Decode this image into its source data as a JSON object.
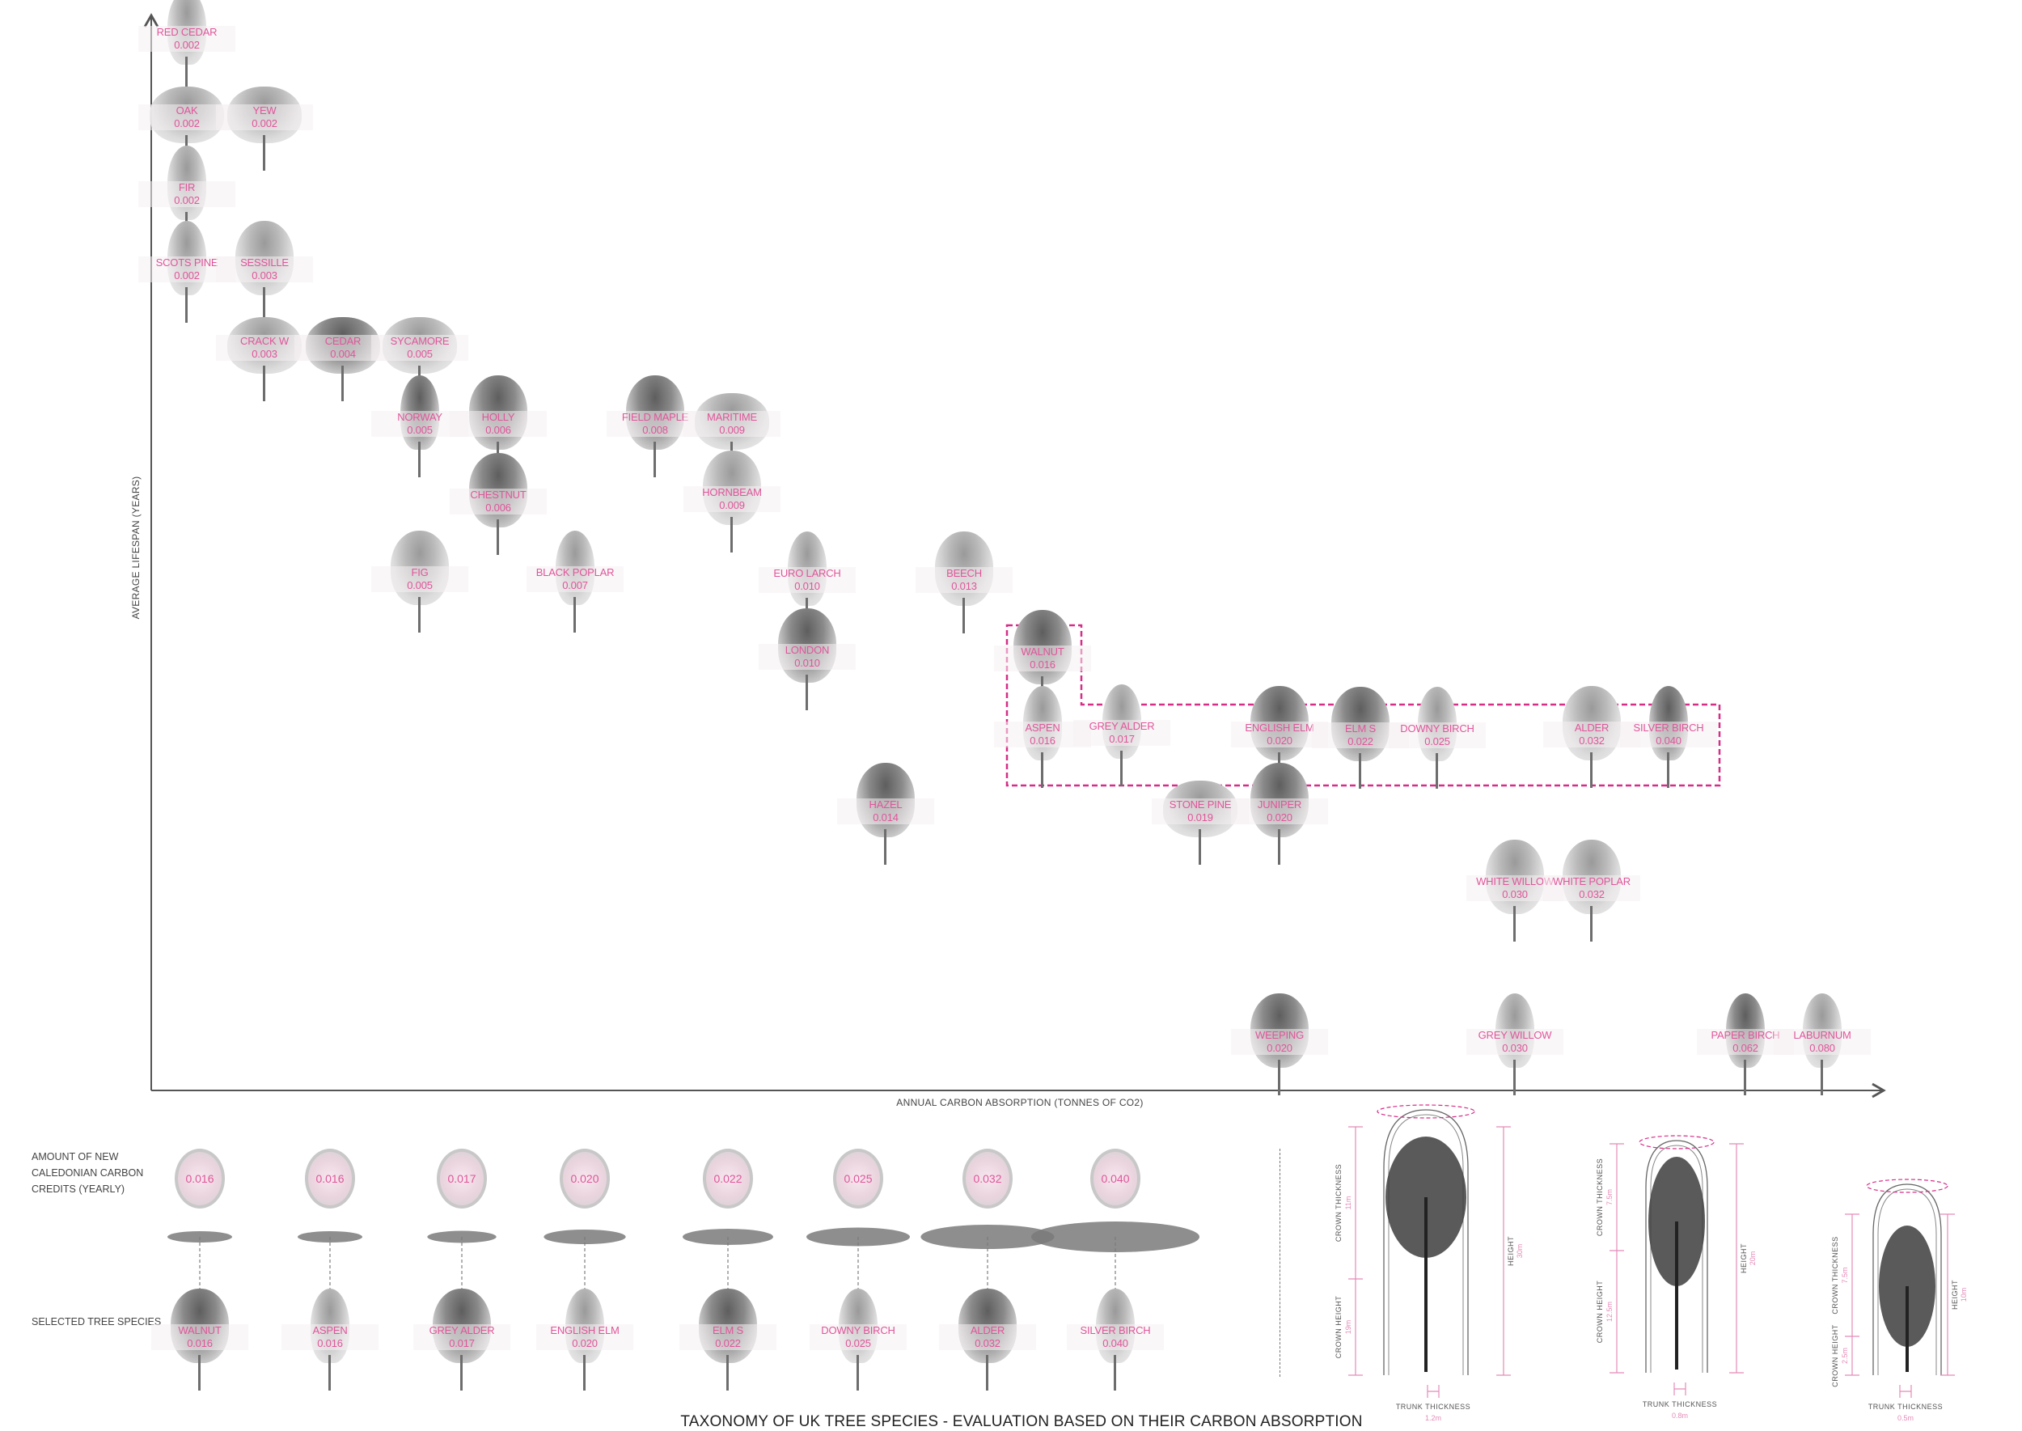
{
  "title": "TAXONOMY OF UK TREE SPECIES - EVALUATION BASED ON THEIR CARBON ABSORPTION",
  "colors": {
    "accent": "#e0559a",
    "highlight_box": "#d62d87",
    "tree_grey": "#8a8a8a",
    "ellipse_grey": "#7a7a7a"
  },
  "chart": {
    "x_axis_label": "ANNUAL CARBON ABSORPTION (TONNES OF CO2)",
    "y_axis_label": "AVERAGE LIFESPAN (YEARS)",
    "trees": [
      {
        "name": "RED CEDAR",
        "value": "0.002"
      },
      {
        "name": "OAK",
        "value": "0.002"
      },
      {
        "name": "YEW",
        "value": "0.002"
      },
      {
        "name": "FIR",
        "value": "0.002"
      },
      {
        "name": "SCOTS PINE",
        "value": "0.002"
      },
      {
        "name": "SESSILLE",
        "value": "0.003"
      },
      {
        "name": "CRACK W",
        "value": "0.003"
      },
      {
        "name": "CEDAR",
        "value": "0.004"
      },
      {
        "name": "SYCAMORE",
        "value": "0.005"
      },
      {
        "name": "NORWAY",
        "value": "0.005"
      },
      {
        "name": "HOLLY",
        "value": "0.006"
      },
      {
        "name": "FIELD MAPLE",
        "value": "0.008"
      },
      {
        "name": "MARITIME",
        "value": "0.009"
      },
      {
        "name": "CHESTNUT",
        "value": "0.006"
      },
      {
        "name": "HORNBEAM",
        "value": "0.009"
      },
      {
        "name": "FIG",
        "value": "0.005"
      },
      {
        "name": "BLACK POPLAR",
        "value": "0.007"
      },
      {
        "name": "EURO LARCH",
        "value": "0.010"
      },
      {
        "name": "BEECH",
        "value": "0.013"
      },
      {
        "name": "LONDON",
        "value": "0.010"
      },
      {
        "name": "WALNUT",
        "value": "0.016"
      },
      {
        "name": "ASPEN",
        "value": "0.016"
      },
      {
        "name": "GREY ALDER",
        "value": "0.017"
      },
      {
        "name": "ENGLISH ELM",
        "value": "0.020"
      },
      {
        "name": "ELM S",
        "value": "0.022"
      },
      {
        "name": "DOWNY BIRCH",
        "value": "0.025"
      },
      {
        "name": "ALDER",
        "value": "0.032"
      },
      {
        "name": "SILVER BIRCH",
        "value": "0.040"
      },
      {
        "name": "HAZEL",
        "value": "0.014"
      },
      {
        "name": "STONE PINE",
        "value": "0.019"
      },
      {
        "name": "JUNIPER",
        "value": "0.020"
      },
      {
        "name": "WHITE WILLOW",
        "value": "0.030"
      },
      {
        "name": "WHITE POPLAR",
        "value": "0.032"
      },
      {
        "name": "WEEPING",
        "value": "0.020"
      },
      {
        "name": "GREY WILLOW",
        "value": "0.030"
      },
      {
        "name": "PAPER BIRCH",
        "value": "0.062"
      },
      {
        "name": "LABURNUM",
        "value": "0.080"
      }
    ]
  },
  "selection": {
    "credits_label": [
      "AMOUNT OF NEW",
      "CALEDONIAN CARBON",
      "CREDITS (YEARLY)"
    ],
    "species_label": "SELECTED TREE SPECIES",
    "items": [
      {
        "name": "WALNUT",
        "value": "0.016",
        "credit": "0.016"
      },
      {
        "name": "ASPEN",
        "value": "0.016",
        "credit": "0.016"
      },
      {
        "name": "GREY ALDER",
        "value": "0.017",
        "credit": "0.017"
      },
      {
        "name": "ENGLISH ELM",
        "value": "0.020",
        "credit": "0.020"
      },
      {
        "name": "ELM S",
        "value": "0.022",
        "credit": "0.022"
      },
      {
        "name": "DOWNY BIRCH",
        "value": "0.025",
        "credit": "0.025"
      },
      {
        "name": "ALDER",
        "value": "0.032",
        "credit": "0.032"
      },
      {
        "name": "SILVER BIRCH",
        "value": "0.040",
        "credit": "0.040"
      }
    ]
  },
  "diagrams": [
    {
      "crown_thickness_label": "CROWN THICKNESS",
      "crown_thickness": "11m",
      "crown_height_label": "CROWN HEIGHT",
      "crown_height": "19m",
      "height_label": "HEIGHT",
      "height": "30m",
      "trunk_label": "TRUNK THICKNESS",
      "trunk": "1.2m"
    },
    {
      "crown_thickness_label": "CROWN THICKNESS",
      "crown_thickness": "7.5m",
      "crown_height_label": "CROWN HEIGHT",
      "crown_height": "12.5m",
      "height_label": "HEIGHT",
      "height": "20m",
      "trunk_label": "TRUNK THICKNESS",
      "trunk": "0.8m"
    },
    {
      "crown_thickness_label": "CROWN THICKNESS",
      "crown_thickness": "7.5m",
      "crown_height_label": "CROWN HEIGHT",
      "crown_height": "2.5m",
      "height_label": "HEIGHT",
      "height": "10m",
      "trunk_label": "TRUNK THICKNESS",
      "trunk": "0.5m"
    }
  ]
}
